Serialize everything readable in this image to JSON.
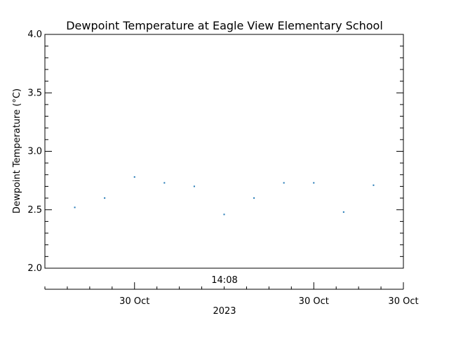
{
  "chart_data": {
    "type": "scatter",
    "title": "Dewpoint Temperature at Eagle View Elementary School",
    "ylabel": "Dewpoint Temperature (°C)",
    "ylim": [
      2.0,
      4.0
    ],
    "yticks": [
      "2.0",
      "2.5",
      "3.0",
      "3.5",
      "4.0"
    ],
    "yminor_step": 0.1,
    "time_label": "14:08",
    "xtick_labels": [
      "30 Oct",
      "30 Oct",
      "30 Oct"
    ],
    "xlabel": "2023",
    "grid": false,
    "point_color": "#1f77b4",
    "series": [
      {
        "values": [
          2.52,
          2.6,
          2.78,
          2.73,
          2.7,
          2.46,
          2.6,
          2.73,
          2.73,
          2.48,
          2.71
        ]
      }
    ]
  }
}
